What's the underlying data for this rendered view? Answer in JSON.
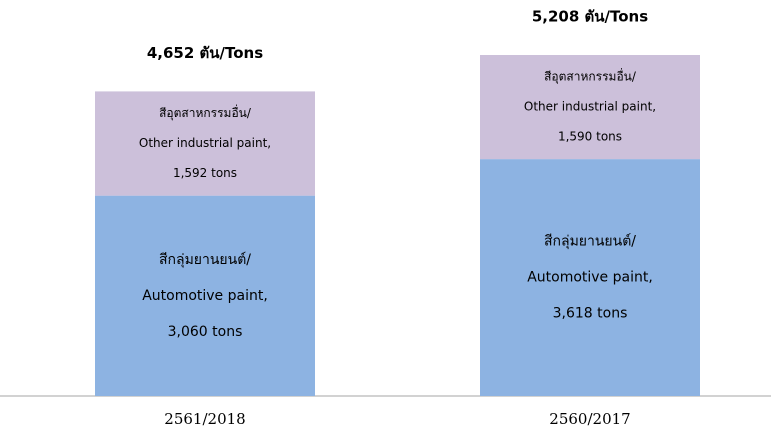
{
  "chart_data": {
    "type": "stacked_bar",
    "categories": [
      "2561/2018",
      "2560/2017"
    ],
    "series": [
      {
        "color": "#8db3e2",
        "values": [
          3060,
          3618
        ],
        "value_labels": [
          [
            "สีกลุ่มยานยนต์/",
            "Automotive paint,",
            "3,060 tons"
          ],
          [
            "สีกลุ่มยานยนต์/",
            "Automotive paint,",
            "3,618 tons"
          ]
        ]
      },
      {
        "color": "#ccc0da",
        "values": [
          1592,
          1590
        ],
        "value_labels": [
          [
            "สีอุตสาหกรรมอื่น/",
            "Other industrial paint,",
            "1,592 tons"
          ],
          [
            "สีอุตสาหกรรมอื่น/",
            "Other industrial paint,",
            "1,590 tons"
          ]
        ]
      }
    ],
    "total_labels": [
      "4,652 ตัน/Tons",
      "5,208 ตัน/Tons"
    ]
  }
}
